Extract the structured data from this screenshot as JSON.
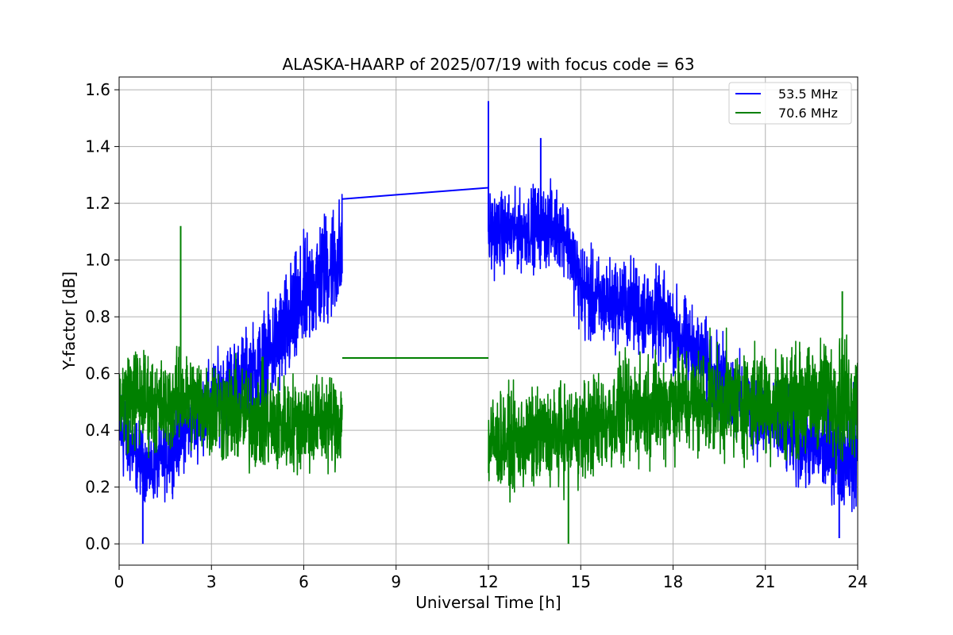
{
  "chart_data": {
    "type": "line",
    "title": "ALASKA-HAARP of 2025/07/19 with focus code = 63",
    "xlabel": "Universal Time [h]",
    "ylabel": "Y-factor [dB]",
    "xlim": [
      0,
      24
    ],
    "ylim": [
      -0.075,
      1.645
    ],
    "x_ticks": [
      "0",
      "3",
      "6",
      "9",
      "12",
      "15",
      "18",
      "21",
      "24"
    ],
    "y_ticks": [
      "0.0",
      "0.2",
      "0.4",
      "0.6",
      "0.8",
      "1.0",
      "1.2",
      "1.4",
      "1.6"
    ],
    "grid": true,
    "legend_position": "top-right",
    "series": [
      {
        "name": "53.5 MHz",
        "color": "#0000ff",
        "segments": [
          {
            "x": [
              0,
              0.5,
              1,
              1.5,
              2,
              2.5,
              3,
              3.5,
              4,
              4.5,
              5,
              5.5,
              6,
              6.5,
              7,
              7.25
            ],
            "center": [
              0.42,
              0.32,
              0.26,
              0.3,
              0.38,
              0.45,
              0.5,
              0.55,
              0.58,
              0.62,
              0.68,
              0.76,
              0.86,
              0.94,
              1.0,
              1.02
            ],
            "amp": [
              0.2,
              0.14,
              0.12,
              0.14,
              0.14,
              0.15,
              0.15,
              0.17,
              0.17,
              0.18,
              0.2,
              0.22,
              0.22,
              0.22,
              0.22,
              0.22
            ]
          },
          {
            "x": [
              12,
              12.5,
              13,
              13.5,
              14,
              14.5,
              15,
              15.5,
              16,
              16.5,
              17,
              17.5,
              18,
              18.5,
              19,
              19.5,
              20,
              20.5,
              21,
              21.5,
              22,
              22.5,
              23,
              23.5,
              24
            ],
            "center": [
              1.1,
              1.1,
              1.1,
              1.12,
              1.12,
              1.1,
              0.9,
              0.85,
              0.85,
              0.85,
              0.82,
              0.8,
              0.76,
              0.7,
              0.64,
              0.58,
              0.52,
              0.48,
              0.44,
              0.4,
              0.36,
              0.34,
              0.34,
              0.33,
              0.33
            ],
            "amp": [
              0.16,
              0.14,
              0.14,
              0.15,
              0.15,
              0.14,
              0.18,
              0.17,
              0.16,
              0.17,
              0.17,
              0.17,
              0.16,
              0.16,
              0.16,
              0.16,
              0.16,
              0.16,
              0.15,
              0.15,
              0.16,
              0.16,
              0.18,
              0.2,
              0.22
            ]
          }
        ],
        "gap_bridge": {
          "x": [
            7.25,
            12
          ],
          "y": [
            1.215,
            1.255
          ]
        },
        "peaks": [
          {
            "x": 12.0,
            "y": 1.56
          },
          {
            "x": 13.7,
            "y": 1.43
          },
          {
            "x": 0.77,
            "y": 0.0
          },
          {
            "x": 23.4,
            "y": 0.02
          }
        ]
      },
      {
        "name": "70.6 MHz",
        "color": "#008000",
        "segments": [
          {
            "x": [
              0,
              0.5,
              1,
              1.5,
              2,
              2.5,
              3,
              3.5,
              4,
              4.5,
              5,
              5.5,
              6,
              6.5,
              7,
              7.25
            ],
            "center": [
              0.5,
              0.52,
              0.5,
              0.48,
              0.52,
              0.5,
              0.48,
              0.46,
              0.45,
              0.44,
              0.42,
              0.42,
              0.43,
              0.43,
              0.44,
              0.44
            ],
            "amp": [
              0.18,
              0.2,
              0.18,
              0.17,
              0.17,
              0.18,
              0.19,
              0.19,
              0.19,
              0.19,
              0.19,
              0.18,
              0.18,
              0.18,
              0.18,
              0.18
            ]
          },
          {
            "x": [
              12,
              12.5,
              13,
              13.5,
              14,
              14.5,
              15,
              15.5,
              16,
              16.5,
              17,
              17.5,
              18,
              18.5,
              19,
              19.5,
              20,
              20.5,
              21,
              21.5,
              22,
              22.5,
              23,
              23.5,
              24
            ],
            "center": [
              0.36,
              0.36,
              0.36,
              0.37,
              0.38,
              0.38,
              0.4,
              0.42,
              0.44,
              0.46,
              0.48,
              0.49,
              0.5,
              0.5,
              0.5,
              0.5,
              0.5,
              0.5,
              0.5,
              0.5,
              0.5,
              0.51,
              0.52,
              0.52,
              0.5
            ],
            "amp": [
              0.18,
              0.18,
              0.18,
              0.18,
              0.18,
              0.18,
              0.19,
              0.19,
              0.19,
              0.2,
              0.2,
              0.2,
              0.2,
              0.2,
              0.2,
              0.2,
              0.2,
              0.2,
              0.2,
              0.2,
              0.2,
              0.2,
              0.22,
              0.24,
              0.2
            ]
          }
        ],
        "gap_bridge": {
          "x": [
            7.25,
            12
          ],
          "y": [
            0.655,
            0.655
          ]
        },
        "peaks": [
          {
            "x": 2.0,
            "y": 1.12
          },
          {
            "x": 23.5,
            "y": 0.89
          },
          {
            "x": 14.6,
            "y": 0.0
          }
        ]
      }
    ]
  }
}
